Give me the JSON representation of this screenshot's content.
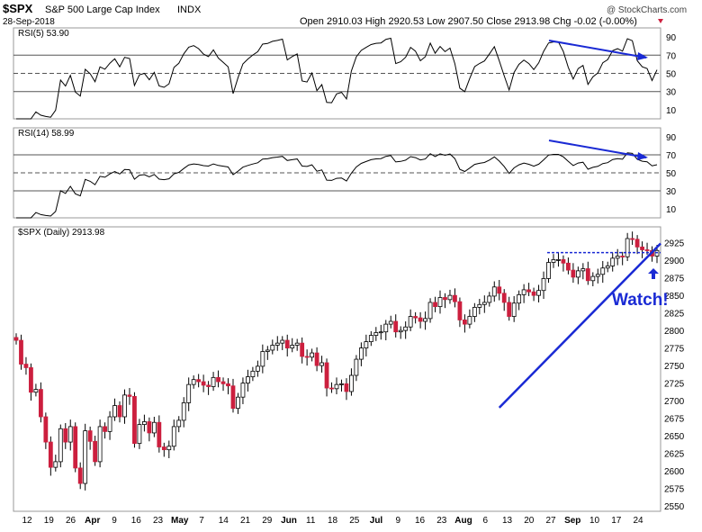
{
  "header": {
    "symbol": "$SPX",
    "name": "S&P 500 Large Cap Index",
    "exchange": "INDX",
    "watermark": "@ StockCharts.com",
    "date": "28-Sep-2018",
    "ohlc": "Open 2910.03  High 2920.53  Low 2907.50  Close 2913.98  Chg -0.02 (-0.00%)"
  },
  "colors": {
    "up": "#ffffff",
    "down": "#cc1f3e",
    "line": "#000000",
    "trend": "#1a2ad4",
    "rsi_high": "#5a7a4f",
    "rsi_low": "#8e5557",
    "grid": "#999999"
  },
  "chart_data": [
    {
      "type": "line",
      "name": "rsi5",
      "legend": "RSI(5) 53.90",
      "last": 53.9,
      "ylim": [
        0,
        100
      ],
      "ticks": [
        90,
        70,
        50,
        30,
        10
      ],
      "levels": [
        70,
        50,
        30
      ],
      "annotation": "downtrend arrow on recent highs"
    },
    {
      "type": "line",
      "name": "rsi14",
      "legend": "RSI(14) 58.99",
      "last": 58.99,
      "ylim": [
        0,
        100
      ],
      "ticks": [
        90,
        70,
        50,
        30,
        10
      ],
      "levels": [
        70,
        50,
        30
      ],
      "annotation": "downtrend arrow on recent highs"
    },
    {
      "type": "candlestick",
      "name": "price",
      "legend": "$SPX (Daily) 2913.98",
      "ylim": [
        2550,
        2940
      ],
      "ticks": [
        2925,
        2900,
        2875,
        2850,
        2825,
        2800,
        2775,
        2750,
        2725,
        2700,
        2675,
        2650,
        2625,
        2600,
        2575,
        2550
      ],
      "x_ticks": [
        "12",
        "19",
        "26",
        "Apr",
        "9",
        "16",
        "23",
        "May",
        "7",
        "14",
        "21",
        "29",
        "Jun",
        "11",
        "18",
        "25",
        "Jul",
        "9",
        "16",
        "23",
        "Aug",
        "6",
        "13",
        "20",
        "27",
        "Sep",
        "10",
        "17",
        "24"
      ],
      "close_series": [
        2786,
        2752,
        2747,
        2712,
        2716,
        2677,
        2641,
        2605,
        2613,
        2660,
        2641,
        2663,
        2604,
        2582,
        2657,
        2642,
        2613,
        2663,
        2656,
        2677,
        2693,
        2677,
        2708,
        2706,
        2639,
        2666,
        2670,
        2654,
        2669,
        2634,
        2630,
        2635,
        2663,
        2672,
        2697,
        2723,
        2730,
        2727,
        2722,
        2720,
        2733,
        2727,
        2724,
        2721,
        2689,
        2705,
        2725,
        2734,
        2742,
        2749,
        2770,
        2772,
        2779,
        2782,
        2786,
        2775,
        2779,
        2782,
        2763,
        2762,
        2768,
        2750,
        2754,
        2718,
        2717,
        2723,
        2724,
        2713,
        2736,
        2759,
        2775,
        2784,
        2793,
        2797,
        2798,
        2809,
        2813,
        2798,
        2800,
        2805,
        2820,
        2818,
        2813,
        2817,
        2840,
        2834,
        2847,
        2844,
        2850,
        2841,
        2815,
        2809,
        2820,
        2833,
        2837,
        2840,
        2849,
        2862,
        2853,
        2840,
        2820,
        2839,
        2851,
        2858,
        2855,
        2850,
        2857,
        2874,
        2897,
        2901,
        2901,
        2896,
        2886,
        2876,
        2885,
        2888,
        2871,
        2877,
        2880,
        2889,
        2892,
        2903,
        2906,
        2905,
        2931,
        2930,
        2919,
        2915,
        2914,
        2906,
        2914
      ]
    }
  ],
  "callout": {
    "text": "Watch!",
    "target": "rising trendline meets resistance"
  }
}
